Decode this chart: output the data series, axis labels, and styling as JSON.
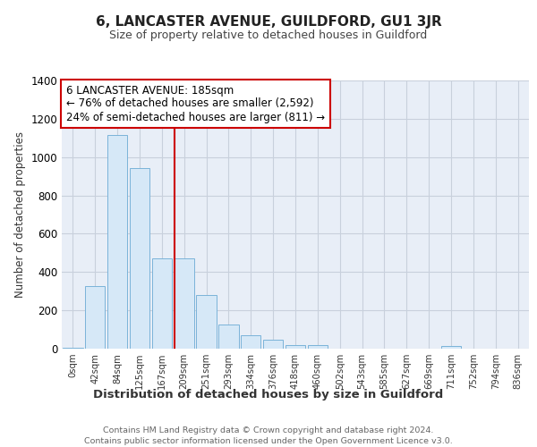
{
  "title": "6, LANCASTER AVENUE, GUILDFORD, GU1 3JR",
  "subtitle": "Size of property relative to detached houses in Guildford",
  "xlabel": "Distribution of detached houses by size in Guildford",
  "ylabel": "Number of detached properties",
  "footer_line1": "Contains HM Land Registry data © Crown copyright and database right 2024.",
  "footer_line2": "Contains public sector information licensed under the Open Government Licence v3.0.",
  "annotation_line1": "6 LANCASTER AVENUE: 185sqm",
  "annotation_line2": "← 76% of detached houses are smaller (2,592)",
  "annotation_line3": "24% of semi-detached houses are larger (811) →",
  "bar_color": "#d6e8f7",
  "bar_edge_color": "#7ab3d9",
  "bg_color": "#ffffff",
  "plot_bg_color": "#e8eef7",
  "grid_color": "#c8d0dc",
  "redline_color": "#cc0000",
  "annotation_border_color": "#cc0000",
  "title_color": "#222222",
  "subtitle_color": "#444444",
  "ylabel_color": "#333333",
  "xlabel_color": "#333333",
  "footer_color": "#666666",
  "categories": [
    "0sqm",
    "42sqm",
    "84sqm",
    "125sqm",
    "167sqm",
    "209sqm",
    "251sqm",
    "293sqm",
    "334sqm",
    "376sqm",
    "418sqm",
    "460sqm",
    "502sqm",
    "543sqm",
    "585sqm",
    "627sqm",
    "669sqm",
    "711sqm",
    "752sqm",
    "794sqm",
    "836sqm"
  ],
  "values": [
    5,
    325,
    1115,
    945,
    470,
    470,
    280,
    125,
    70,
    45,
    20,
    20,
    0,
    0,
    0,
    0,
    0,
    15,
    0,
    0,
    0
  ],
  "ylim": [
    0,
    1400
  ],
  "yticks": [
    0,
    200,
    400,
    600,
    800,
    1000,
    1200,
    1400
  ],
  "redline_x": 4.55
}
